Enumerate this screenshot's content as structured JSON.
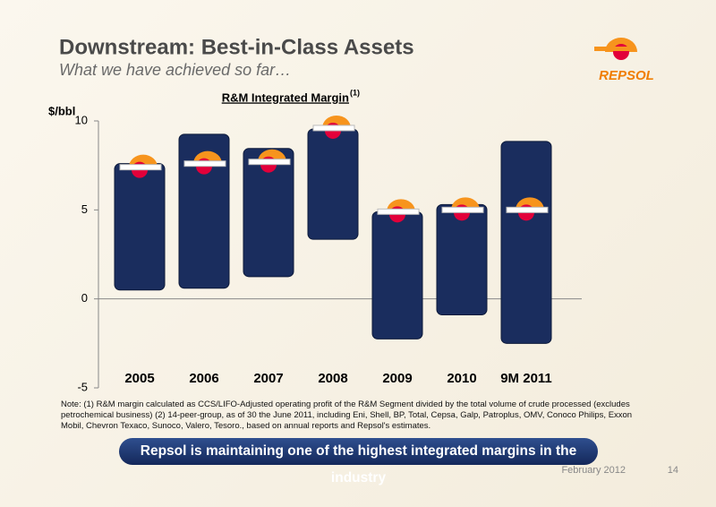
{
  "header": {
    "title": "Downstream: Best-in-Class Assets",
    "subtitle": "What we have achieved so far…"
  },
  "logo": "REPSOL",
  "chart_data": {
    "type": "floating-range",
    "title": "R&M Integrated Margin",
    "title_superscript": "(1)",
    "y_label": "$/bbl",
    "categories": [
      "2005",
      "2006",
      "2007",
      "2008",
      "2009",
      "2010",
      "9M 2011"
    ],
    "low": [
      0.5,
      0.6,
      1.25,
      3.35,
      -2.25,
      -0.9,
      -2.5
    ],
    "high": [
      7.6,
      9.25,
      8.45,
      9.55,
      4.9,
      5.3,
      8.85
    ],
    "marker": [
      7.4,
      7.6,
      7.7,
      9.6,
      4.9,
      5.0,
      5.0
    ],
    "color": "#1a2d5e",
    "marker_color": "#f7941d",
    "ylim": [
      -5,
      10
    ],
    "yticks": [
      -5,
      0,
      5,
      10
    ]
  },
  "note": "Note: (1) R&M margin calculated as CCS/LIFO-Adjusted operating profit of the R&M Segment divided by the total volume of crude processed  (excludes petrochemical business) (2) 14-peer-group, as of 30 the June 2011, including Eni, Shell, BP, Total, Cepsa, Galp, Patroplus, OMV, Conoco Philips, Exxon Mobil, Chevron Texaco, Sunoco, Valero, Tesoro., based on annual reports and Repsol's estimates.",
  "banner": "Repsol is maintaining one of the highest integrated margins in the industry",
  "footer": {
    "date": "February 2012",
    "page": "14"
  }
}
